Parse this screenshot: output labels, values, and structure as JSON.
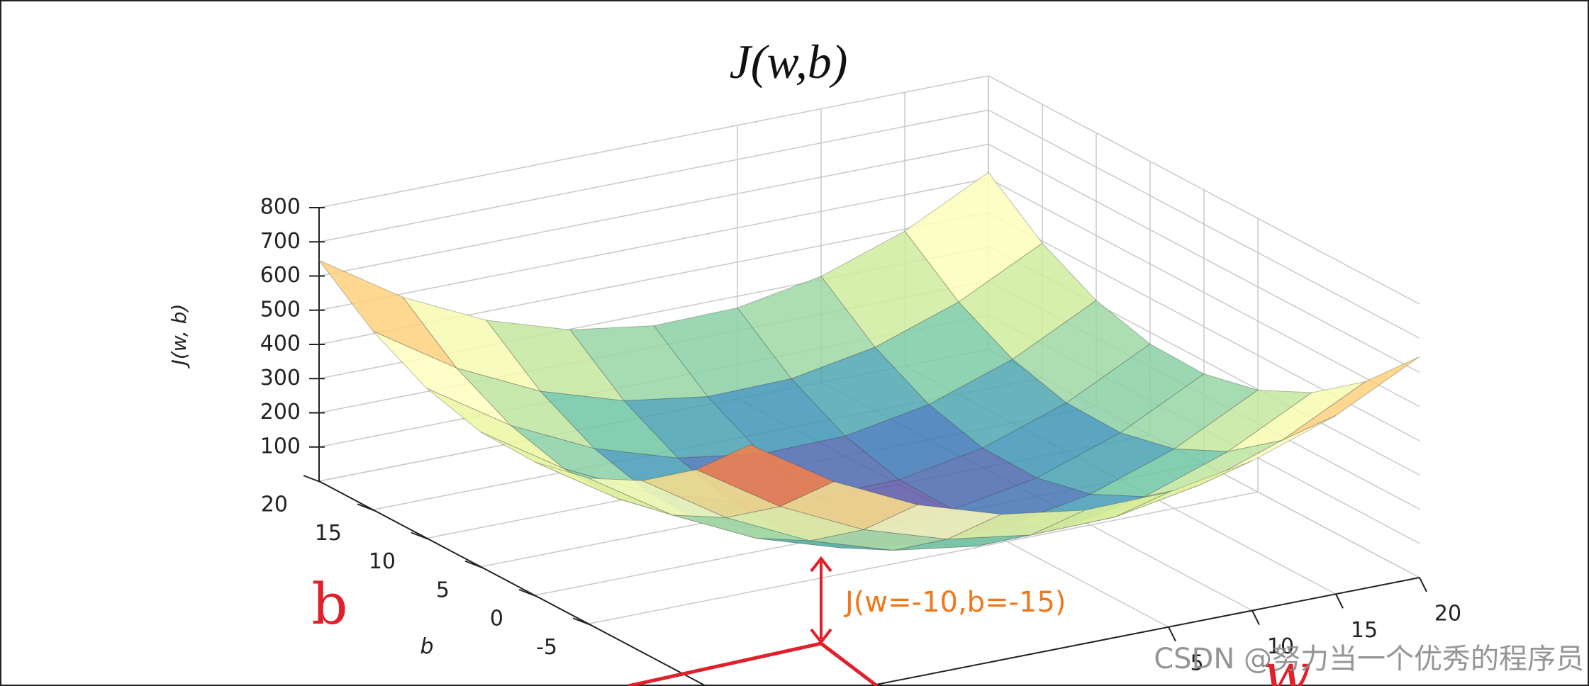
{
  "chart_data": {
    "type": "surface3d",
    "title": "J(w,b)",
    "zlabel": "J(w, b)",
    "ylabel": "b",
    "x": [
      -20,
      -15,
      -10,
      -5,
      0,
      5,
      10,
      15,
      20
    ],
    "y": [
      -20,
      -15,
      -10,
      -5,
      0,
      5,
      10,
      15,
      20
    ],
    "z": [
      [
        774,
        618,
        502,
        426,
        390,
        394,
        438,
        522,
        646
      ],
      [
        618,
        462,
        346,
        270,
        234,
        238,
        282,
        366,
        490
      ],
      [
        502,
        346,
        230,
        154,
        118,
        122,
        166,
        250,
        374
      ],
      [
        426,
        270,
        154,
        78,
        42,
        46,
        90,
        174,
        298
      ],
      [
        390,
        234,
        118,
        42,
        6,
        10,
        54,
        138,
        262
      ],
      [
        394,
        238,
        122,
        46,
        10,
        14,
        58,
        142,
        266
      ],
      [
        438,
        282,
        166,
        90,
        54,
        58,
        102,
        186,
        310
      ],
      [
        522,
        366,
        250,
        174,
        138,
        142,
        186,
        270,
        394
      ],
      [
        646,
        490,
        374,
        298,
        262,
        266,
        310,
        394,
        518
      ]
    ],
    "xlim": [
      -20,
      20
    ],
    "ylim": [
      -20,
      20
    ],
    "zlim": [
      0,
      800
    ],
    "xticks": [
      5,
      10,
      15,
      20
    ],
    "yticks": [
      -5,
      0,
      5,
      10,
      15,
      20
    ],
    "zticks": [
      100,
      200,
      300,
      400,
      500,
      600,
      700,
      800
    ],
    "colormap": "Spectral_r",
    "grid": true
  },
  "annotations": {
    "point_label": "J(w=-10,b=-15)",
    "handwritten_b": "b",
    "handwritten_w": "w"
  },
  "watermark": "CSDN @努力当一个优秀的程序员"
}
